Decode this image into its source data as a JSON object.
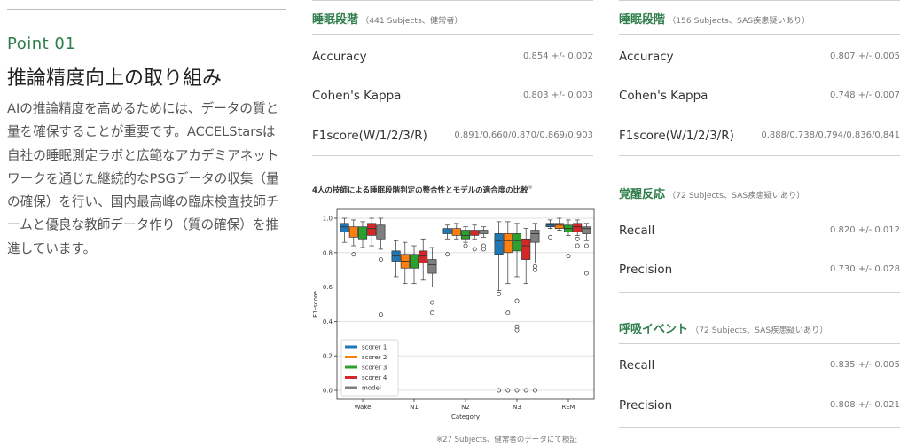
{
  "left": {
    "point": "Point 01",
    "title": "推論精度向上の取り組み",
    "body": "AIの推論精度を高めるためには、データの質と量を確保することが重要です。ACCELStarsは自社の睡眠測定ラボと広範なアカデミアネットワークを通じた継続的なPSGデータの収集（量の確保）を行い、国内最高峰の臨床検査技師チームと優良な教師データ作り（質の確保）を推進しています。"
  },
  "tables": {
    "t1": {
      "title": "睡眠段階",
      "sub": "（441 Subjects、健常者）",
      "rows": [
        {
          "label": "Accuracy",
          "value": "0.854 +/- 0.002"
        },
        {
          "label": "Cohen's Kappa",
          "value": "0.803 +/- 0.003"
        },
        {
          "label": "F1score(W/1/2/3/R)",
          "value": "0.891/0.660/0.870/0.869/0.903"
        }
      ]
    },
    "t2": {
      "title": "睡眠段階",
      "sub": "（156 Subjects、SAS疾患疑いあり）",
      "rows": [
        {
          "label": "Accuracy",
          "value": "0.807 +/- 0.005"
        },
        {
          "label": "Cohen's Kappa",
          "value": "0.748 +/- 0.007"
        },
        {
          "label": "F1score(W/1/2/3/R)",
          "value": "0.888/0.738/0.794/0.836/0.841"
        }
      ]
    },
    "t3": {
      "title": "覚醒反応",
      "sub": "（72 Subjects、SAS疾患疑いあり）",
      "rows": [
        {
          "label": "Recall",
          "value": "0.820 +/- 0.012"
        },
        {
          "label": "Precision",
          "value": "0.730 +/- 0.028"
        }
      ]
    },
    "t4": {
      "title": "呼吸イベント",
      "sub": "（72 Subjects、SAS疾患疑いあり）",
      "rows": [
        {
          "label": "Recall",
          "value": "0.835 +/- 0.005"
        },
        {
          "label": "Precision",
          "value": "0.808 +/- 0.021"
        }
      ]
    }
  },
  "chart": {
    "title": "4人の技師による睡眠段階判定の整合性とモデルの適合度の比較",
    "title_mark": "※",
    "note": "※27 Subjects、健常者のデータにて検証"
  },
  "chart_data": {
    "type": "box",
    "xlabel": "Category",
    "ylabel": "F1-score",
    "ylim": [
      0,
      1.0
    ],
    "yticks": [
      "0.0",
      "0.2",
      "0.4",
      "0.6",
      "0.8",
      "1.0"
    ],
    "grid": true,
    "legend_position": "lower-left",
    "categories": [
      "Wake",
      "N1",
      "N2",
      "N3",
      "REM"
    ],
    "series": [
      {
        "name": "scorer 1",
        "color": "#1f77b4",
        "boxes": [
          {
            "whislo": 0.86,
            "q1": 0.92,
            "med": 0.95,
            "q3": 0.97,
            "whishi": 1.0,
            "fliers": []
          },
          {
            "whislo": 0.66,
            "q1": 0.75,
            "med": 0.78,
            "q3": 0.81,
            "whishi": 0.87,
            "fliers": []
          },
          {
            "whislo": 0.88,
            "q1": 0.91,
            "med": 0.92,
            "q3": 0.94,
            "whishi": 0.96,
            "fliers": [
              0.79
            ]
          },
          {
            "whislo": 0.58,
            "q1": 0.79,
            "med": 0.87,
            "q3": 0.91,
            "whishi": 0.98,
            "fliers": [
              0.56,
              0.0
            ]
          },
          {
            "whislo": 0.94,
            "q1": 0.95,
            "med": 0.96,
            "q3": 0.97,
            "whishi": 0.99,
            "fliers": [
              0.89
            ]
          }
        ]
      },
      {
        "name": "scorer 2",
        "color": "#ff7f0e",
        "boxes": [
          {
            "whislo": 0.84,
            "q1": 0.89,
            "med": 0.92,
            "q3": 0.95,
            "whishi": 0.99,
            "fliers": [
              0.79
            ]
          },
          {
            "whislo": 0.62,
            "q1": 0.71,
            "med": 0.75,
            "q3": 0.79,
            "whishi": 0.86,
            "fliers": []
          },
          {
            "whislo": 0.88,
            "q1": 0.9,
            "med": 0.92,
            "q3": 0.94,
            "whishi": 0.97,
            "fliers": []
          },
          {
            "whislo": 0.62,
            "q1": 0.8,
            "med": 0.87,
            "q3": 0.91,
            "whishi": 0.98,
            "fliers": [
              0.45,
              0.0
            ]
          },
          {
            "whislo": 0.93,
            "q1": 0.94,
            "med": 0.96,
            "q3": 0.97,
            "whishi": 1.0,
            "fliers": []
          }
        ]
      },
      {
        "name": "scorer 3",
        "color": "#2ca02c",
        "boxes": [
          {
            "whislo": 0.83,
            "q1": 0.88,
            "med": 0.92,
            "q3": 0.95,
            "whishi": 0.98,
            "fliers": []
          },
          {
            "whislo": 0.62,
            "q1": 0.71,
            "med": 0.74,
            "q3": 0.79,
            "whishi": 0.84,
            "fliers": []
          },
          {
            "whislo": 0.86,
            "q1": 0.88,
            "med": 0.9,
            "q3": 0.93,
            "whishi": 0.95,
            "fliers": [
              0.84
            ]
          },
          {
            "whislo": 0.66,
            "q1": 0.81,
            "med": 0.87,
            "q3": 0.91,
            "whishi": 0.97,
            "fliers": [
              0.52,
              0.37,
              0.35,
              0.0
            ]
          },
          {
            "whislo": 0.9,
            "q1": 0.92,
            "med": 0.94,
            "q3": 0.96,
            "whishi": 0.99,
            "fliers": [
              0.78
            ]
          }
        ]
      },
      {
        "name": "scorer 4",
        "color": "#d62728",
        "boxes": [
          {
            "whislo": 0.84,
            "q1": 0.9,
            "med": 0.94,
            "q3": 0.97,
            "whishi": 1.0,
            "fliers": []
          },
          {
            "whislo": 0.64,
            "q1": 0.74,
            "med": 0.78,
            "q3": 0.81,
            "whishi": 0.88,
            "fliers": []
          },
          {
            "whislo": 0.88,
            "q1": 0.9,
            "med": 0.92,
            "q3": 0.93,
            "whishi": 0.96,
            "fliers": [
              0.82
            ]
          },
          {
            "whislo": 0.62,
            "q1": 0.76,
            "med": 0.84,
            "q3": 0.88,
            "whishi": 0.94,
            "fliers": [
              0.0
            ]
          },
          {
            "whislo": 0.9,
            "q1": 0.92,
            "med": 0.95,
            "q3": 0.97,
            "whishi": 0.99,
            "fliers": [
              0.88,
              0.84
            ]
          }
        ]
      },
      {
        "name": "model",
        "color": "#7f7f7f",
        "boxes": [
          {
            "whislo": 0.82,
            "q1": 0.88,
            "med": 0.92,
            "q3": 0.96,
            "whishi": 1.0,
            "fliers": [
              0.76,
              0.44
            ]
          },
          {
            "whislo": 0.6,
            "q1": 0.68,
            "med": 0.73,
            "q3": 0.76,
            "whishi": 0.83,
            "fliers": [
              0.51,
              0.45
            ]
          },
          {
            "whislo": 0.89,
            "q1": 0.91,
            "med": 0.92,
            "q3": 0.93,
            "whishi": 0.95,
            "fliers": [
              0.84,
              0.82
            ]
          },
          {
            "whislo": 0.74,
            "q1": 0.86,
            "med": 0.91,
            "q3": 0.93,
            "whishi": 0.97,
            "fliers": [
              0.72,
              0.7,
              0.0
            ]
          },
          {
            "whislo": 0.87,
            "q1": 0.91,
            "med": 0.94,
            "q3": 0.95,
            "whishi": 0.97,
            "fliers": [
              0.84,
              0.68
            ]
          }
        ]
      }
    ]
  }
}
